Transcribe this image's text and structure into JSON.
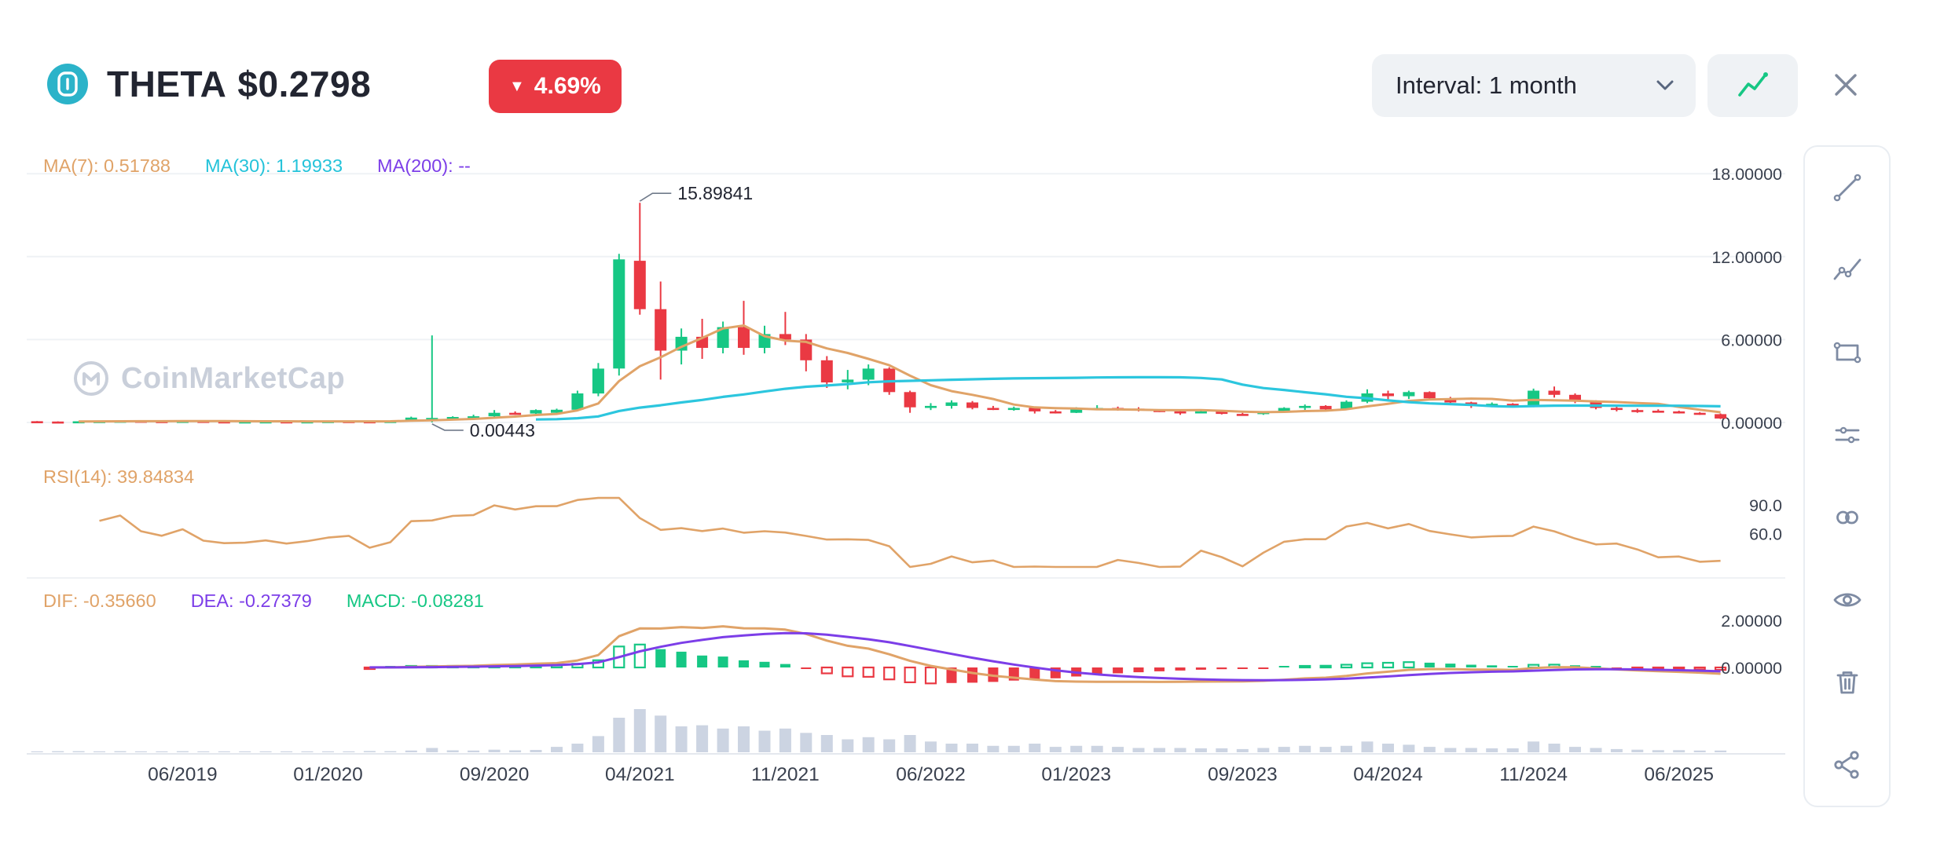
{
  "header": {
    "coin": "THETA",
    "price": "$0.2798",
    "change": "4.69%",
    "change_direction": "down",
    "arrow_glyph": "▼",
    "interval_label": "Interval: 1 month"
  },
  "watermark": "CoinMarketCap",
  "toolbar_tools": [
    "trend-line",
    "multi-point-line",
    "rectangle",
    "horizontal-lines",
    "link",
    "visibility",
    "delete",
    "share"
  ],
  "colors": {
    "green": "#16c784",
    "red": "#ea3943",
    "orange": "#e0a368",
    "cyan": "#2cc6de",
    "purple": "#7c3ee8",
    "volume": "#ccd4e2",
    "grid": "#eff2f5",
    "axis_line": "#e4e8ee",
    "axis_text": "#3a414f",
    "badge_red": "#ea3943",
    "logo_teal": "#2bb3c9",
    "icon_gray": "#7e8ba3",
    "annotation": "#222531"
  },
  "chart_data": {
    "type": "candlestick",
    "title": "THETA monthly price with MA(7)/MA(30) overlays, RSI(14), MACD and volume",
    "interval": "1 month",
    "ylim": [
      0,
      18
    ],
    "price_axis_ticks": [
      {
        "label": "18.00000",
        "value": 18
      },
      {
        "label": "12.00000",
        "value": 12
      },
      {
        "label": "6.00000",
        "value": 6
      },
      {
        "label": "0.00000",
        "value": 0
      }
    ],
    "x_axis_labels": [
      {
        "label": "06/2019",
        "index": 7
      },
      {
        "label": "01/2020",
        "index": 14
      },
      {
        "label": "09/2020",
        "index": 22
      },
      {
        "label": "04/2021",
        "index": 29
      },
      {
        "label": "11/2021",
        "index": 36
      },
      {
        "label": "06/2022",
        "index": 43
      },
      {
        "label": "01/2023",
        "index": 50
      },
      {
        "label": "09/2023",
        "index": 58
      },
      {
        "label": "04/2024",
        "index": 65
      },
      {
        "label": "11/2024",
        "index": 72
      },
      {
        "label": "06/2025",
        "index": 79
      }
    ],
    "overlays": {
      "ma7": "MA(7): 0.51788",
      "ma30": "MA(30): 1.19933",
      "ma200": "MA(200): --"
    },
    "annotations": {
      "high": {
        "label": "15.89841",
        "index": 29,
        "value": 15.898
      },
      "low": {
        "label": "0.00443",
        "index": 19,
        "value": 0.00443
      }
    },
    "candles_ohlcv": [
      [
        0.09,
        0.1,
        0.06,
        0.07,
        0.4
      ],
      [
        0.07,
        0.08,
        0.04,
        0.05,
        0.5
      ],
      [
        0.05,
        0.09,
        0.045,
        0.085,
        0.5
      ],
      [
        0.085,
        0.11,
        0.08,
        0.105,
        0.4
      ],
      [
        0.105,
        0.14,
        0.095,
        0.125,
        0.5
      ],
      [
        0.125,
        0.135,
        0.09,
        0.1,
        0.4
      ],
      [
        0.1,
        0.11,
        0.08,
        0.09,
        0.4
      ],
      [
        0.09,
        0.125,
        0.085,
        0.115,
        0.5
      ],
      [
        0.115,
        0.12,
        0.07,
        0.08,
        0.4
      ],
      [
        0.08,
        0.09,
        0.06,
        0.07,
        0.3
      ],
      [
        0.07,
        0.08,
        0.06,
        0.072,
        0.3
      ],
      [
        0.072,
        0.09,
        0.062,
        0.082,
        0.3
      ],
      [
        0.082,
        0.088,
        0.062,
        0.068,
        0.3
      ],
      [
        0.068,
        0.085,
        0.06,
        0.08,
        0.3
      ],
      [
        0.08,
        0.11,
        0.072,
        0.1,
        0.4
      ],
      [
        0.1,
        0.12,
        0.08,
        0.088,
        0.4
      ],
      [
        0.088,
        0.095,
        0.038,
        0.062,
        0.6
      ],
      [
        0.062,
        0.12,
        0.055,
        0.11,
        0.5
      ],
      [
        0.11,
        0.42,
        0.1,
        0.35,
        0.8
      ],
      [
        0.3,
        6.3,
        0.00443,
        0.33,
        2.0
      ],
      [
        0.33,
        0.45,
        0.25,
        0.4,
        0.9
      ],
      [
        0.4,
        0.56,
        0.3,
        0.45,
        0.8
      ],
      [
        0.45,
        0.9,
        0.35,
        0.7,
        1.2
      ],
      [
        0.7,
        0.8,
        0.55,
        0.65,
        0.9
      ],
      [
        0.65,
        0.95,
        0.6,
        0.9,
        1.1
      ],
      [
        0.7,
        1.0,
        0.6,
        0.92,
        2.5
      ],
      [
        0.92,
        2.3,
        0.85,
        2.1,
        4.0
      ],
      [
        2.1,
        4.3,
        1.9,
        3.9,
        7.5
      ],
      [
        3.9,
        12.2,
        3.4,
        11.8,
        16.0
      ],
      [
        11.7,
        15.898,
        7.8,
        8.2,
        20.0
      ],
      [
        8.2,
        10.2,
        3.1,
        5.2,
        17.0
      ],
      [
        5.2,
        6.8,
        4.2,
        6.2,
        12.0
      ],
      [
        6.2,
        7.5,
        4.6,
        5.4,
        12.5
      ],
      [
        5.4,
        7.3,
        5.0,
        6.9,
        11.0
      ],
      [
        6.9,
        8.8,
        4.9,
        5.4,
        12.0
      ],
      [
        5.4,
        7.0,
        5.0,
        6.4,
        10.0
      ],
      [
        6.4,
        8.0,
        5.6,
        6.0,
        11.0
      ],
      [
        6.0,
        6.4,
        3.7,
        4.5,
        9.0
      ],
      [
        4.5,
        4.8,
        2.5,
        2.9,
        8.0
      ],
      [
        2.9,
        3.8,
        2.4,
        3.1,
        6.0
      ],
      [
        3.1,
        4.2,
        2.7,
        3.9,
        7.0
      ],
      [
        3.9,
        4.0,
        2.0,
        2.2,
        6.0
      ],
      [
        2.2,
        2.3,
        0.7,
        1.1,
        8.0
      ],
      [
        1.1,
        1.4,
        0.9,
        1.2,
        5.0
      ],
      [
        1.2,
        1.6,
        1.0,
        1.45,
        4.0
      ],
      [
        1.45,
        1.55,
        0.95,
        1.05,
        4.0
      ],
      [
        1.05,
        1.2,
        0.9,
        1.0,
        3.0
      ],
      [
        1.0,
        1.15,
        0.85,
        1.05,
        3.0
      ],
      [
        1.05,
        1.1,
        0.65,
        0.8,
        4.0
      ],
      [
        0.8,
        0.9,
        0.65,
        0.7,
        2.5
      ],
      [
        0.7,
        1.1,
        0.68,
        1.0,
        3.0
      ],
      [
        1.0,
        1.25,
        0.9,
        1.05,
        3.0
      ],
      [
        1.05,
        1.15,
        0.85,
        1.0,
        2.5
      ],
      [
        1.0,
        1.1,
        0.8,
        0.9,
        2.0
      ],
      [
        0.9,
        0.95,
        0.75,
        0.8,
        2.0
      ],
      [
        0.8,
        0.85,
        0.55,
        0.75,
        2.0
      ],
      [
        0.75,
        0.9,
        0.7,
        0.8,
        1.8
      ],
      [
        0.8,
        0.82,
        0.58,
        0.62,
        1.8
      ],
      [
        0.62,
        0.7,
        0.55,
        0.6,
        1.5
      ],
      [
        0.6,
        0.8,
        0.55,
        0.75,
        2.0
      ],
      [
        0.75,
        1.1,
        0.7,
        1.05,
        2.5
      ],
      [
        1.05,
        1.3,
        0.9,
        1.2,
        3.0
      ],
      [
        1.2,
        1.25,
        0.85,
        0.95,
        2.5
      ],
      [
        0.95,
        1.6,
        0.9,
        1.5,
        3.0
      ],
      [
        1.5,
        2.4,
        1.4,
        2.1,
        5.0
      ],
      [
        2.1,
        2.3,
        1.6,
        1.9,
        4.0
      ],
      [
        1.9,
        2.3,
        1.7,
        2.2,
        3.5
      ],
      [
        2.2,
        2.25,
        1.6,
        1.75,
        2.5
      ],
      [
        1.75,
        1.85,
        1.3,
        1.45,
        2.0
      ],
      [
        1.45,
        1.5,
        1.05,
        1.2,
        2.0
      ],
      [
        1.2,
        1.45,
        1.1,
        1.35,
        1.8
      ],
      [
        1.35,
        1.4,
        1.1,
        1.2,
        1.8
      ],
      [
        1.2,
        2.45,
        1.1,
        2.3,
        5.0
      ],
      [
        2.3,
        2.6,
        1.8,
        2.0,
        4.0
      ],
      [
        2.0,
        2.1,
        1.4,
        1.55,
        2.5
      ],
      [
        1.55,
        1.6,
        0.95,
        1.05,
        2.0
      ],
      [
        1.05,
        1.15,
        0.8,
        0.9,
        1.5
      ],
      [
        0.9,
        1.0,
        0.7,
        0.85,
        1.2
      ],
      [
        0.85,
        0.95,
        0.75,
        0.8,
        1.0
      ],
      [
        0.8,
        0.85,
        0.65,
        0.7,
        1.0
      ],
      [
        0.7,
        0.75,
        0.55,
        0.6,
        0.8
      ],
      [
        0.6,
        0.65,
        0.25,
        0.28,
        0.8
      ]
    ],
    "rsi_panel": {
      "label": "RSI(14): 39.84834",
      "ticks": [
        {
          "label": "90.0",
          "value": 90
        },
        {
          "label": "60.0",
          "value": 60
        }
      ]
    },
    "macd_panel": {
      "dif_label": "DIF: -0.35660",
      "dea_label": "DEA: -0.27379",
      "macd_label": "MACD: -0.08281",
      "ticks": [
        {
          "label": "2.00000",
          "value": 2
        },
        {
          "label": "0.00000",
          "value": 0
        }
      ]
    }
  }
}
